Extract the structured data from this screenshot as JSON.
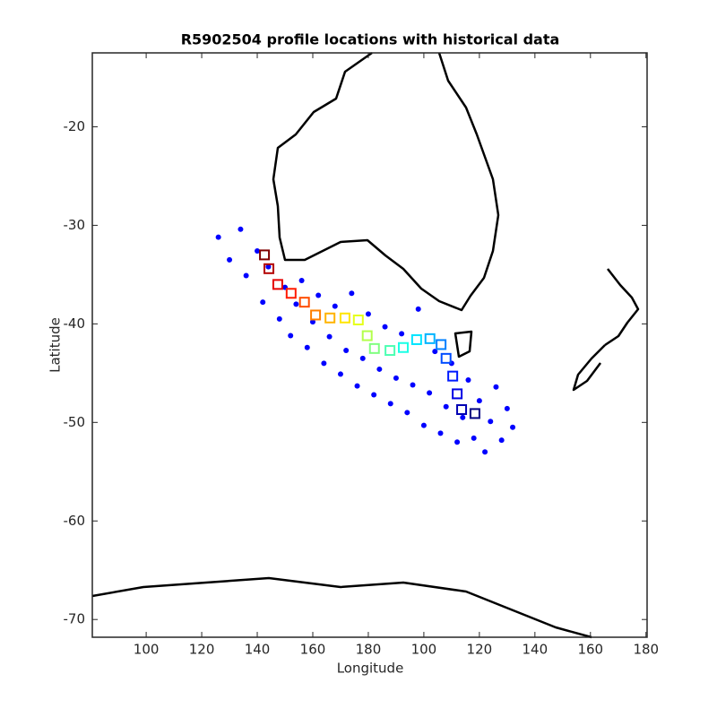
{
  "chart_data": {
    "type": "scatter",
    "title": "R5902504 profile locations with historical data",
    "x_label": "Longitude",
    "y_label": "Latitude",
    "xlim": [
      90.3,
      190.2
    ],
    "ylim": [
      -71.8,
      -12.5
    ],
    "xticks": [
      {
        "value": 100,
        "label": "100"
      },
      {
        "value": 110,
        "label": "120"
      },
      {
        "value": 120,
        "label": "140"
      },
      {
        "value": 130,
        "label": "160"
      },
      {
        "value": 140,
        "label": "180"
      },
      {
        "value": 150,
        "label": "100"
      },
      {
        "value": 160,
        "label": "120"
      },
      {
        "value": 170,
        "label": "140"
      },
      {
        "value": 180,
        "label": "160"
      },
      {
        "value": 190,
        "label": "180"
      }
    ],
    "yticks": [
      -20,
      -30,
      -40,
      -50,
      -60,
      -70
    ],
    "series": [
      {
        "color": "#0000ff",
        "marker": "circle",
        "x": [
          113,
          115,
          117,
          118,
          120,
          121,
          122,
          124,
          125,
          126,
          127,
          128,
          129,
          130,
          131,
          132,
          133,
          134,
          135,
          136,
          137,
          138,
          139,
          140,
          141,
          142,
          143,
          144,
          145,
          146,
          147,
          148,
          149,
          150,
          151,
          152,
          153,
          154,
          155,
          156,
          157,
          158,
          159,
          160,
          161,
          162,
          163,
          164,
          165,
          166
        ],
        "y": [
          -31.2,
          -33.5,
          -30.4,
          -35.1,
          -32.6,
          -37.8,
          -34.2,
          -39.5,
          -36.3,
          -41.2,
          -38.0,
          -35.6,
          -42.4,
          -39.8,
          -37.1,
          -44.0,
          -41.3,
          -38.2,
          -45.1,
          -42.7,
          -36.9,
          -46.3,
          -43.5,
          -39.0,
          -47.2,
          -44.6,
          -40.3,
          -48.1,
          -45.5,
          -41.0,
          -49.0,
          -46.2,
          -38.5,
          -50.3,
          -47.0,
          -42.8,
          -51.1,
          -48.4,
          -44.0,
          -52.0,
          -49.5,
          -45.7,
          -51.6,
          -47.8,
          -53.0,
          -49.9,
          -46.4,
          -51.8,
          -48.6,
          -50.5
        ]
      },
      {
        "colormap": "jet",
        "marker": "square",
        "x": [
          121.3,
          122.1,
          123.7,
          126.1,
          128.5,
          130.5,
          133.1,
          135.8,
          138.2,
          139.8,
          141.1,
          143.9,
          146.3,
          148.7,
          151.1,
          153.1,
          154.0,
          155.2,
          156.0,
          156.8,
          159.2
        ],
        "y": [
          -33.0,
          -34.4,
          -36.0,
          -36.9,
          -37.8,
          -39.1,
          -39.4,
          -39.4,
          -39.6,
          -41.2,
          -42.5,
          -42.7,
          -42.4,
          -41.6,
          -41.5,
          -42.1,
          -43.5,
          -45.3,
          -47.1,
          -48.7,
          -49.1
        ]
      }
    ]
  }
}
